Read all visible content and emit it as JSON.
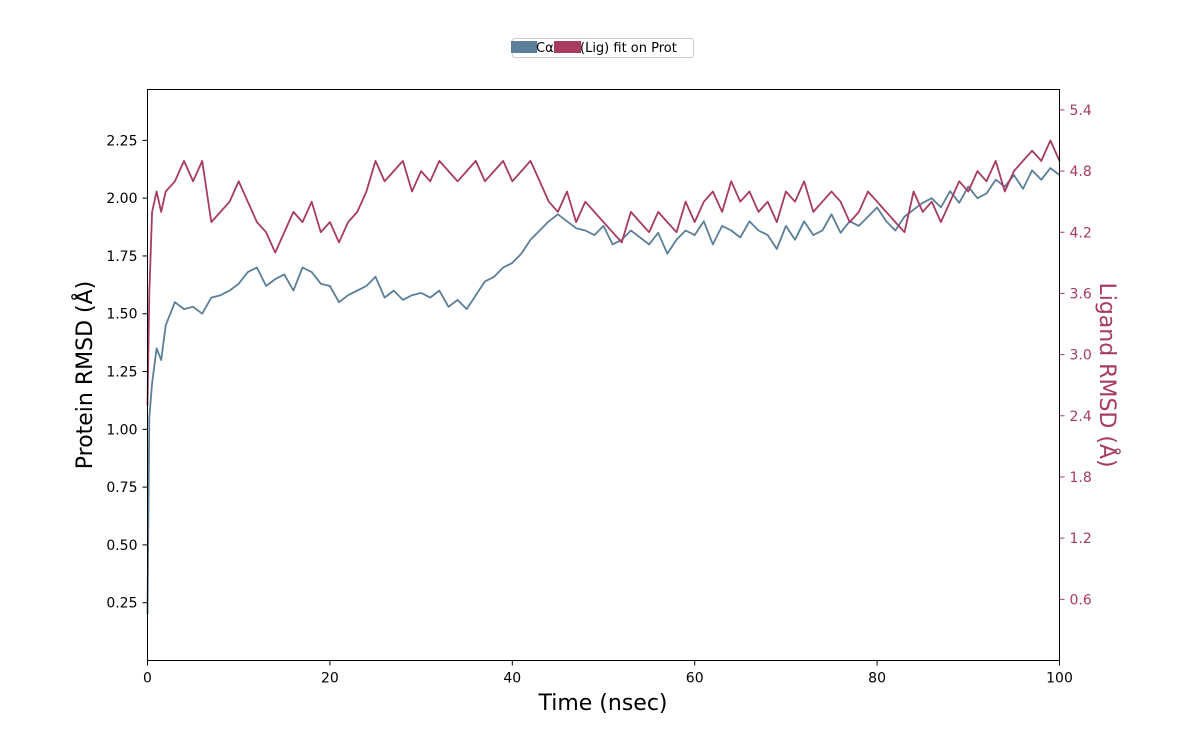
{
  "chart_data": {
    "type": "line",
    "xlabel": "Time (nsec)",
    "ylabel_left": "Protein RMSD (Å)",
    "ylabel_right": "Ligand RMSD (Å)",
    "xlim": [
      0,
      100
    ],
    "ylim_left": [
      0,
      2.47
    ],
    "ylim_right": [
      0,
      5.6
    ],
    "x_ticks": [
      "0",
      "20",
      "40",
      "60",
      "80",
      "100"
    ],
    "y_ticks_left": [
      "0.25",
      "0.50",
      "0.75",
      "1.00",
      "1.25",
      "1.50",
      "1.75",
      "2.00",
      "2.25"
    ],
    "y_ticks_right": [
      "0.6",
      "1.2",
      "1.8",
      "2.4",
      "3.0",
      "3.6",
      "4.2",
      "4.8",
      "5.4"
    ],
    "grid": false,
    "legend_position": "top-center",
    "legend_labels": [
      "Cα",
      "(Lig) fit on Prot"
    ],
    "series": [
      {
        "name": "Cα",
        "axis": "left",
        "color": "#5b7f99",
        "x": [
          0,
          0.2,
          0.5,
          1,
          1.5,
          2,
          3,
          4,
          5,
          6,
          7,
          8,
          9,
          10,
          11,
          12,
          13,
          14,
          15,
          16,
          17,
          18,
          19,
          20,
          21,
          22,
          23,
          24,
          25,
          26,
          27,
          28,
          29,
          30,
          31,
          32,
          33,
          34,
          35,
          36,
          37,
          38,
          39,
          40,
          41,
          42,
          43,
          44,
          45,
          46,
          47,
          48,
          49,
          50,
          51,
          52,
          53,
          54,
          55,
          56,
          57,
          58,
          59,
          60,
          61,
          62,
          63,
          64,
          65,
          66,
          67,
          68,
          69,
          70,
          71,
          72,
          73,
          74,
          75,
          76,
          77,
          78,
          79,
          80,
          81,
          82,
          83,
          84,
          85,
          86,
          87,
          88,
          89,
          90,
          91,
          92,
          93,
          94,
          95,
          96,
          97,
          98,
          99,
          100
        ],
        "y": [
          0.2,
          1.05,
          1.2,
          1.35,
          1.3,
          1.45,
          1.55,
          1.52,
          1.53,
          1.5,
          1.57,
          1.58,
          1.6,
          1.63,
          1.68,
          1.7,
          1.62,
          1.65,
          1.67,
          1.6,
          1.7,
          1.68,
          1.63,
          1.62,
          1.55,
          1.58,
          1.6,
          1.62,
          1.66,
          1.57,
          1.6,
          1.56,
          1.58,
          1.59,
          1.57,
          1.6,
          1.53,
          1.56,
          1.52,
          1.58,
          1.64,
          1.66,
          1.7,
          1.72,
          1.76,
          1.82,
          1.86,
          1.9,
          1.93,
          1.9,
          1.87,
          1.86,
          1.84,
          1.88,
          1.8,
          1.82,
          1.86,
          1.83,
          1.8,
          1.85,
          1.76,
          1.82,
          1.86,
          1.84,
          1.9,
          1.8,
          1.88,
          1.86,
          1.83,
          1.9,
          1.86,
          1.84,
          1.78,
          1.88,
          1.82,
          1.9,
          1.84,
          1.86,
          1.93,
          1.85,
          1.9,
          1.88,
          1.92,
          1.96,
          1.9,
          1.86,
          1.92,
          1.95,
          1.98,
          2.0,
          1.96,
          2.03,
          1.98,
          2.05,
          2.0,
          2.02,
          2.08,
          2.05,
          2.1,
          2.04,
          2.12,
          2.08,
          2.13,
          2.1
        ]
      },
      {
        "name": "(Lig) fit on Prot",
        "axis": "right",
        "color": "#a83b62",
        "x": [
          0,
          0.2,
          0.5,
          1,
          1.5,
          2,
          3,
          4,
          5,
          6,
          7,
          8,
          9,
          10,
          11,
          12,
          13,
          14,
          15,
          16,
          17,
          18,
          19,
          20,
          21,
          22,
          23,
          24,
          25,
          26,
          27,
          28,
          29,
          30,
          31,
          32,
          33,
          34,
          35,
          36,
          37,
          38,
          39,
          40,
          41,
          42,
          43,
          44,
          45,
          46,
          47,
          48,
          49,
          50,
          51,
          52,
          53,
          54,
          55,
          56,
          57,
          58,
          59,
          60,
          61,
          62,
          63,
          64,
          65,
          66,
          67,
          68,
          69,
          70,
          71,
          72,
          73,
          74,
          75,
          76,
          77,
          78,
          79,
          80,
          81,
          82,
          83,
          84,
          85,
          86,
          87,
          88,
          89,
          90,
          91,
          92,
          93,
          94,
          95,
          96,
          97,
          98,
          99,
          100
        ],
        "y": [
          2.5,
          3.6,
          4.4,
          4.6,
          4.4,
          4.6,
          4.7,
          4.9,
          4.7,
          4.9,
          4.3,
          4.4,
          4.5,
          4.7,
          4.5,
          4.3,
          4.2,
          4.0,
          4.2,
          4.4,
          4.3,
          4.5,
          4.2,
          4.3,
          4.1,
          4.3,
          4.4,
          4.6,
          4.9,
          4.7,
          4.8,
          4.9,
          4.6,
          4.8,
          4.7,
          4.9,
          4.8,
          4.7,
          4.8,
          4.9,
          4.7,
          4.8,
          4.9,
          4.7,
          4.8,
          4.9,
          4.7,
          4.5,
          4.4,
          4.6,
          4.3,
          4.5,
          4.4,
          4.3,
          4.2,
          4.1,
          4.4,
          4.3,
          4.2,
          4.4,
          4.3,
          4.2,
          4.5,
          4.3,
          4.5,
          4.6,
          4.4,
          4.7,
          4.5,
          4.6,
          4.4,
          4.5,
          4.3,
          4.6,
          4.5,
          4.7,
          4.4,
          4.5,
          4.6,
          4.5,
          4.3,
          4.4,
          4.6,
          4.5,
          4.4,
          4.3,
          4.2,
          4.6,
          4.4,
          4.5,
          4.3,
          4.5,
          4.7,
          4.6,
          4.8,
          4.7,
          4.9,
          4.6,
          4.8,
          4.9,
          5.0,
          4.9,
          5.1,
          4.9
        ]
      }
    ]
  }
}
